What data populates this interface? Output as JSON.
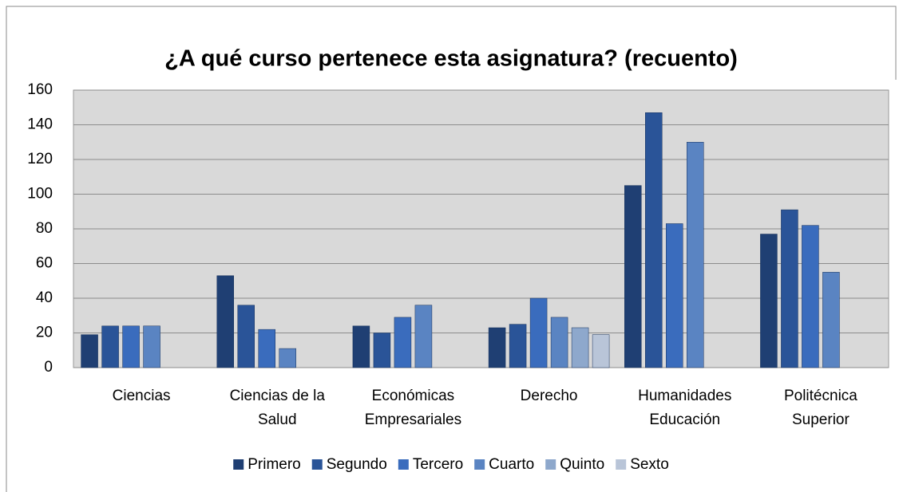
{
  "chart_data": {
    "type": "bar",
    "title": "¿A qué curso pertenece esta asignatura? (recuento)",
    "categories": [
      "Ciencias",
      "Ciencias de la\nSalud",
      "Económicas\nEmpresariales",
      "Derecho",
      "Humanidades\nEducación",
      "Politécnica\nSuperior"
    ],
    "series": [
      {
        "name": "Primero",
        "color": "#1f3f73",
        "values": [
          19,
          53,
          24,
          23,
          105,
          77
        ]
      },
      {
        "name": "Segundo",
        "color": "#2a5498",
        "values": [
          24,
          36,
          20,
          25,
          147,
          91
        ]
      },
      {
        "name": "Tercero",
        "color": "#3a6cbd",
        "values": [
          24,
          22,
          29,
          40,
          83,
          82
        ]
      },
      {
        "name": "Cuarto",
        "color": "#5a84c2",
        "values": [
          24,
          11,
          36,
          29,
          130,
          55
        ]
      },
      {
        "name": "Quinto",
        "color": "#8ea8cc",
        "values": [
          null,
          null,
          null,
          23,
          null,
          null
        ]
      },
      {
        "name": "Sexto",
        "color": "#b9c5d8",
        "values": [
          null,
          null,
          null,
          19,
          null,
          null
        ]
      }
    ],
    "ylim": [
      0,
      160
    ],
    "yticks": [
      0,
      20,
      40,
      60,
      80,
      100,
      120,
      140,
      160
    ],
    "grid": true,
    "legend": "bottom"
  }
}
